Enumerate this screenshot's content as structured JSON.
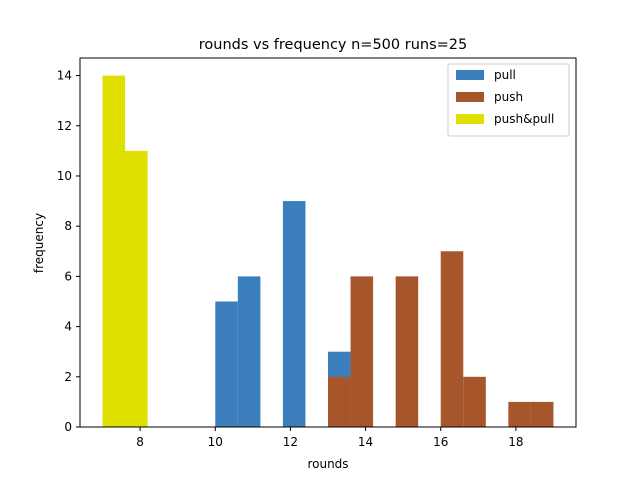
{
  "chart_data": {
    "type": "bar",
    "title": "rounds vs frequency n=500 runs=25",
    "xlabel": "rounds",
    "ylabel": "frequency",
    "xlim": [
      6.4,
      19.6
    ],
    "ylim": [
      0,
      14.7
    ],
    "xticks": [
      8,
      10,
      12,
      14,
      16,
      18
    ],
    "yticks": [
      0,
      2,
      4,
      6,
      8,
      10,
      12,
      14
    ],
    "bin_width": 0.6,
    "grid": false,
    "legend_position": "top-right",
    "series": [
      {
        "name": "pull",
        "color": "#3a7ebb",
        "bins": [
          {
            "x": 10.0,
            "value": 5
          },
          {
            "x": 10.6,
            "value": 6
          },
          {
            "x": 11.8,
            "value": 9
          },
          {
            "x": 13.0,
            "value": 3
          }
        ]
      },
      {
        "name": "push",
        "color": "#a6562a",
        "bins": [
          {
            "x": 13.0,
            "value": 2
          },
          {
            "x": 13.6,
            "value": 6
          },
          {
            "x": 14.8,
            "value": 6
          },
          {
            "x": 16.0,
            "value": 7
          },
          {
            "x": 16.6,
            "value": 2
          },
          {
            "x": 17.8,
            "value": 1
          },
          {
            "x": 18.4,
            "value": 1
          }
        ]
      },
      {
        "name": "push&pull",
        "color": "#dfdf00",
        "bins": [
          {
            "x": 7.0,
            "value": 14
          },
          {
            "x": 7.6,
            "value": 11
          }
        ]
      }
    ]
  }
}
